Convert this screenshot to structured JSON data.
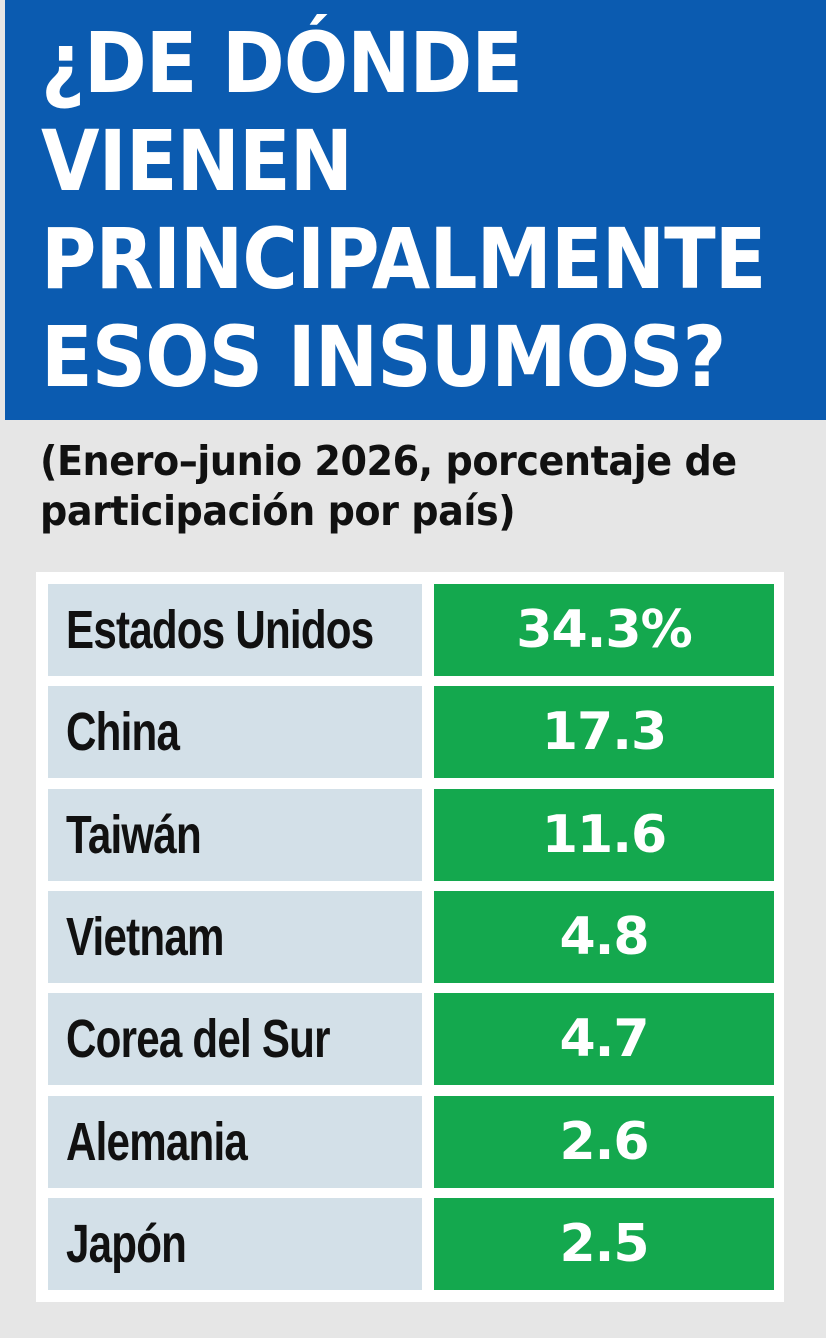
{
  "chart_data": {
    "type": "table",
    "title": "¿DE DÓNDE\nVIENEN\nPRINCIPALMENTE\nESOS INSUMOS?",
    "subtitle": "(Enero–junio 2026, porcentaje de participación por país)",
    "rows": [
      {
        "country": "Estados Unidos",
        "value_label": "34.3%",
        "value": 34.3
      },
      {
        "country": "China",
        "value_label": "17.3",
        "value": 17.3
      },
      {
        "country": "Taiwán",
        "value_label": "11.6",
        "value": 11.6
      },
      {
        "country": "Vietnam",
        "value_label": "4.8",
        "value": 4.8
      },
      {
        "country": "Corea del Sur",
        "value_label": "4.7",
        "value": 4.7
      },
      {
        "country": "Alemania",
        "value_label": "2.6",
        "value": 2.6
      },
      {
        "country": "Japón",
        "value_label": "2.5",
        "value": 2.5
      }
    ]
  },
  "colors": {
    "header_blue": "#0b5bb0",
    "value_green": "#14a84e",
    "country_cell": "#d3e0e8",
    "background": "#e6e6e6"
  }
}
